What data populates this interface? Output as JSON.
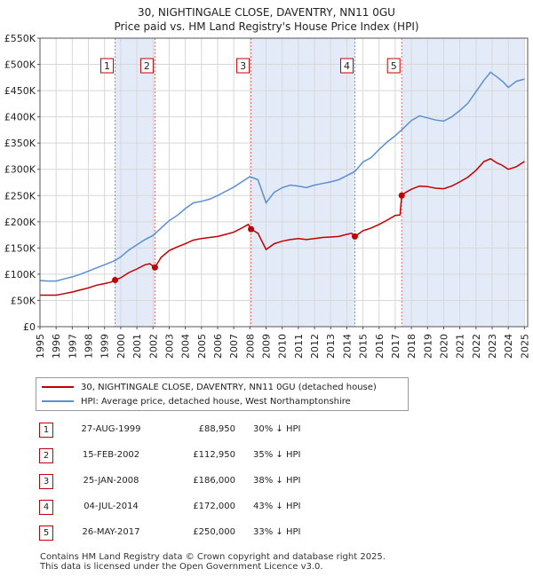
{
  "title_line1": "30, NIGHTINGALE CLOSE, DAVENTRY, NN11 0GU",
  "title_line2": "Price paid vs. HM Land Registry's House Price Index (HPI)",
  "colors": {
    "property": "#c00000",
    "hpi": "#5b8fd0",
    "shade": "#e4ebf8",
    "grid": "#d8d8d8",
    "vline": "#e07070"
  },
  "chart_data": {
    "type": "line",
    "title": "30, NIGHTINGALE CLOSE, DAVENTRY, NN11 0GU — Price paid vs. HM Land Registry's House Price Index (HPI)",
    "xlim": [
      1995,
      2025.2
    ],
    "ylim": [
      0,
      550000
    ],
    "y_ticks": [
      {
        "value": 0,
        "label": "£0"
      },
      {
        "value": 50000,
        "label": "£50K"
      },
      {
        "value": 100000,
        "label": "£100K"
      },
      {
        "value": 150000,
        "label": "£150K"
      },
      {
        "value": 200000,
        "label": "£200K"
      },
      {
        "value": 250000,
        "label": "£250K"
      },
      {
        "value": 300000,
        "label": "£300K"
      },
      {
        "value": 350000,
        "label": "£350K"
      },
      {
        "value": 400000,
        "label": "£400K"
      },
      {
        "value": 450000,
        "label": "£450K"
      },
      {
        "value": 500000,
        "label": "£500K"
      },
      {
        "value": 550000,
        "label": "£550K"
      }
    ],
    "x_ticks": [
      1995,
      1996,
      1997,
      1998,
      1999,
      2000,
      2001,
      2002,
      2003,
      2004,
      2005,
      2006,
      2007,
      2008,
      2009,
      2010,
      2011,
      2012,
      2013,
      2014,
      2015,
      2016,
      2017,
      2018,
      2019,
      2020,
      2021,
      2022,
      2023,
      2024,
      2025
    ],
    "shaded_ranges": [
      [
        1999.65,
        2002.12
      ],
      [
        2008.07,
        2014.5
      ],
      [
        2017.4,
        2025.0
      ]
    ],
    "series": [
      {
        "name": "30, NIGHTINGALE CLOSE, DAVENTRY, NN11 0GU (detached house)",
        "points": [
          [
            1995.0,
            60000
          ],
          [
            1995.5,
            60000
          ],
          [
            1996.0,
            60000
          ],
          [
            1996.5,
            63000
          ],
          [
            1997.0,
            66000
          ],
          [
            1997.5,
            70000
          ],
          [
            1998.0,
            74000
          ],
          [
            1998.5,
            79000
          ],
          [
            1999.0,
            82000
          ],
          [
            1999.4,
            85000
          ],
          [
            1999.65,
            88950
          ],
          [
            2000.0,
            93000
          ],
          [
            2000.5,
            103000
          ],
          [
            2001.0,
            110000
          ],
          [
            2001.5,
            118000
          ],
          [
            2001.8,
            120000
          ],
          [
            2002.12,
            112950
          ],
          [
            2002.5,
            132000
          ],
          [
            2003.0,
            145000
          ],
          [
            2003.5,
            152000
          ],
          [
            2004.0,
            158000
          ],
          [
            2004.5,
            165000
          ],
          [
            2005.0,
            168000
          ],
          [
            2005.5,
            170000
          ],
          [
            2006.0,
            172000
          ],
          [
            2006.5,
            176000
          ],
          [
            2007.0,
            180000
          ],
          [
            2007.5,
            188000
          ],
          [
            2007.9,
            195000
          ],
          [
            2008.07,
            186000
          ],
          [
            2008.5,
            178000
          ],
          [
            2009.0,
            147000
          ],
          [
            2009.5,
            158000
          ],
          [
            2010.0,
            163000
          ],
          [
            2010.5,
            166000
          ],
          [
            2011.0,
            168000
          ],
          [
            2011.5,
            166000
          ],
          [
            2012.0,
            168000
          ],
          [
            2012.5,
            170000
          ],
          [
            2013.0,
            171000
          ],
          [
            2013.5,
            172000
          ],
          [
            2014.0,
            176000
          ],
          [
            2014.3,
            178000
          ],
          [
            2014.5,
            172000
          ],
          [
            2015.0,
            183000
          ],
          [
            2015.5,
            188000
          ],
          [
            2016.0,
            195000
          ],
          [
            2016.5,
            203000
          ],
          [
            2017.0,
            212000
          ],
          [
            2017.3,
            213000
          ],
          [
            2017.4,
            250000
          ],
          [
            2017.6,
            255000
          ],
          [
            2018.0,
            262000
          ],
          [
            2018.5,
            268000
          ],
          [
            2019.0,
            267000
          ],
          [
            2019.5,
            264000
          ],
          [
            2020.0,
            263000
          ],
          [
            2020.5,
            268000
          ],
          [
            2021.0,
            276000
          ],
          [
            2021.5,
            285000
          ],
          [
            2022.0,
            298000
          ],
          [
            2022.5,
            315000
          ],
          [
            2022.9,
            320000
          ],
          [
            2023.3,
            312000
          ],
          [
            2023.6,
            308000
          ],
          [
            2024.0,
            300000
          ],
          [
            2024.5,
            305000
          ],
          [
            2025.0,
            315000
          ]
        ]
      },
      {
        "name": "HPI: Average price, detached house, West Northamptonshire",
        "points": [
          [
            1995.0,
            88000
          ],
          [
            1995.5,
            87000
          ],
          [
            1996.0,
            87000
          ],
          [
            1996.5,
            91000
          ],
          [
            1997.0,
            95000
          ],
          [
            1997.5,
            100000
          ],
          [
            1998.0,
            106000
          ],
          [
            1998.5,
            112000
          ],
          [
            1999.0,
            118000
          ],
          [
            1999.65,
            126000
          ],
          [
            2000.0,
            133000
          ],
          [
            2000.5,
            146000
          ],
          [
            2001.0,
            156000
          ],
          [
            2001.5,
            166000
          ],
          [
            2002.0,
            174000
          ],
          [
            2002.5,
            188000
          ],
          [
            2003.0,
            202000
          ],
          [
            2003.5,
            212000
          ],
          [
            2004.0,
            225000
          ],
          [
            2004.5,
            236000
          ],
          [
            2005.0,
            239000
          ],
          [
            2005.5,
            243000
          ],
          [
            2006.0,
            250000
          ],
          [
            2006.5,
            258000
          ],
          [
            2007.0,
            266000
          ],
          [
            2007.5,
            276000
          ],
          [
            2008.0,
            286000
          ],
          [
            2008.5,
            280000
          ],
          [
            2009.0,
            236000
          ],
          [
            2009.5,
            256000
          ],
          [
            2010.0,
            265000
          ],
          [
            2010.5,
            270000
          ],
          [
            2011.0,
            268000
          ],
          [
            2011.5,
            265000
          ],
          [
            2012.0,
            270000
          ],
          [
            2012.5,
            273000
          ],
          [
            2013.0,
            276000
          ],
          [
            2013.5,
            280000
          ],
          [
            2014.0,
            288000
          ],
          [
            2014.5,
            296000
          ],
          [
            2015.0,
            314000
          ],
          [
            2015.5,
            322000
          ],
          [
            2016.0,
            338000
          ],
          [
            2016.5,
            352000
          ],
          [
            2017.0,
            364000
          ],
          [
            2017.5,
            378000
          ],
          [
            2018.0,
            393000
          ],
          [
            2018.5,
            402000
          ],
          [
            2019.0,
            398000
          ],
          [
            2019.5,
            394000
          ],
          [
            2020.0,
            392000
          ],
          [
            2020.5,
            400000
          ],
          [
            2021.0,
            412000
          ],
          [
            2021.5,
            426000
          ],
          [
            2022.0,
            448000
          ],
          [
            2022.5,
            470000
          ],
          [
            2022.9,
            485000
          ],
          [
            2023.3,
            476000
          ],
          [
            2023.7,
            466000
          ],
          [
            2024.0,
            456000
          ],
          [
            2024.5,
            468000
          ],
          [
            2025.0,
            472000
          ]
        ]
      }
    ],
    "sales": [
      {
        "id": "1",
        "x": 1999.65,
        "price": 88950
      },
      {
        "id": "2",
        "x": 2002.12,
        "price": 112950
      },
      {
        "id": "3",
        "x": 2008.07,
        "price": 186000
      },
      {
        "id": "4",
        "x": 2014.5,
        "price": 172000
      },
      {
        "id": "5",
        "x": 2017.4,
        "price": 250000
      }
    ]
  },
  "legend": {
    "property_label": "30, NIGHTINGALE CLOSE, DAVENTRY, NN11 0GU (detached house)",
    "hpi_label": "HPI: Average price, detached house, West Northamptonshire"
  },
  "transactions": [
    {
      "id": "1",
      "date": "27-AUG-1999",
      "price": "£88,950",
      "hpi": "30% ↓ HPI"
    },
    {
      "id": "2",
      "date": "15-FEB-2002",
      "price": "£112,950",
      "hpi": "35% ↓ HPI"
    },
    {
      "id": "3",
      "date": "25-JAN-2008",
      "price": "£186,000",
      "hpi": "38% ↓ HPI"
    },
    {
      "id": "4",
      "date": "04-JUL-2014",
      "price": "£172,000",
      "hpi": "43% ↓ HPI"
    },
    {
      "id": "5",
      "date": "26-MAY-2017",
      "price": "£250,000",
      "hpi": "33% ↓ HPI"
    }
  ],
  "footer": {
    "line1": "Contains HM Land Registry data © Crown copyright and database right 2025.",
    "line2": "This data is licensed under the Open Government Licence v3.0."
  }
}
